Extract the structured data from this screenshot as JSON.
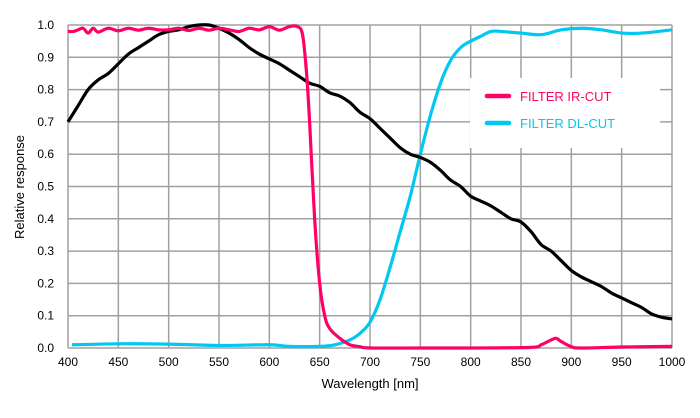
{
  "chart_data": {
    "type": "line",
    "title": "",
    "xlabel": "Wavelength [nm]",
    "ylabel": "Relative response",
    "xlim": [
      400,
      1000
    ],
    "ylim": [
      0,
      1.0
    ],
    "grid": true,
    "legend_position": "top-right",
    "x_ticks": [
      "400",
      "450",
      "500",
      "550",
      "600",
      "650",
      "700",
      "750",
      "800",
      "850",
      "900",
      "950",
      "1000"
    ],
    "y_ticks": [
      "0.0",
      "0.1",
      "0.2",
      "0.3",
      "0.4",
      "0.5",
      "0.6",
      "0.7",
      "0.8",
      "0.9",
      "1.0"
    ],
    "series": [
      {
        "name": "",
        "color": "#000000",
        "in_legend": false,
        "x": [
          400,
          410,
          420,
          430,
          440,
          450,
          460,
          470,
          480,
          490,
          500,
          510,
          520,
          530,
          540,
          550,
          560,
          570,
          580,
          590,
          600,
          610,
          620,
          630,
          640,
          650,
          660,
          670,
          680,
          690,
          700,
          710,
          720,
          730,
          740,
          750,
          760,
          770,
          780,
          790,
          800,
          810,
          820,
          830,
          840,
          850,
          860,
          870,
          880,
          890,
          900,
          910,
          920,
          930,
          940,
          950,
          960,
          970,
          980,
          990,
          1000
        ],
        "y": [
          0.7,
          0.75,
          0.8,
          0.83,
          0.85,
          0.88,
          0.91,
          0.93,
          0.95,
          0.97,
          0.98,
          0.985,
          0.995,
          1.0,
          1.0,
          0.99,
          0.975,
          0.955,
          0.93,
          0.91,
          0.895,
          0.88,
          0.86,
          0.84,
          0.82,
          0.81,
          0.79,
          0.78,
          0.76,
          0.73,
          0.71,
          0.68,
          0.65,
          0.62,
          0.6,
          0.59,
          0.575,
          0.55,
          0.52,
          0.5,
          0.47,
          0.455,
          0.44,
          0.42,
          0.4,
          0.39,
          0.36,
          0.32,
          0.3,
          0.27,
          0.24,
          0.22,
          0.205,
          0.19,
          0.17,
          0.155,
          0.14,
          0.125,
          0.105,
          0.095,
          0.09
        ]
      },
      {
        "name": "FILTER IR-CUT",
        "color": "#ff0066",
        "in_legend": true,
        "x": [
          400,
          405,
          410,
          415,
          420,
          425,
          430,
          440,
          450,
          460,
          470,
          480,
          490,
          500,
          510,
          520,
          530,
          540,
          550,
          560,
          570,
          580,
          590,
          600,
          610,
          620,
          628,
          633,
          637,
          640,
          645,
          650,
          655,
          660,
          670,
          680,
          690,
          700,
          750,
          800,
          860,
          870,
          880,
          885,
          890,
          900,
          910,
          950,
          1000
        ],
        "y": [
          0.98,
          0.98,
          0.985,
          0.99,
          0.975,
          0.99,
          0.978,
          0.99,
          0.982,
          0.99,
          0.984,
          0.99,
          0.985,
          0.985,
          0.99,
          0.983,
          0.99,
          0.984,
          0.99,
          0.985,
          0.98,
          0.99,
          0.985,
          0.995,
          0.984,
          0.995,
          0.995,
          0.97,
          0.85,
          0.7,
          0.4,
          0.2,
          0.1,
          0.06,
          0.03,
          0.01,
          0.004,
          0.0,
          0.0,
          0.0,
          0.002,
          0.01,
          0.025,
          0.03,
          0.02,
          0.004,
          0.0,
          0.003,
          0.005
        ]
      },
      {
        "name": "FILTER DL-CUT",
        "color": "#00c8f0",
        "in_legend": true,
        "x": [
          404,
          450,
          500,
          550,
          600,
          620,
          650,
          665,
          680,
          690,
          700,
          710,
          720,
          730,
          740,
          750,
          760,
          770,
          780,
          790,
          800,
          810,
          820,
          830,
          850,
          870,
          890,
          910,
          930,
          950,
          970,
          1000
        ],
        "y": [
          0.01,
          0.013,
          0.012,
          0.008,
          0.01,
          0.005,
          0.005,
          0.01,
          0.025,
          0.045,
          0.08,
          0.15,
          0.25,
          0.36,
          0.47,
          0.6,
          0.72,
          0.82,
          0.89,
          0.93,
          0.95,
          0.965,
          0.98,
          0.98,
          0.975,
          0.97,
          0.985,
          0.99,
          0.985,
          0.975,
          0.975,
          0.985
        ]
      }
    ]
  }
}
